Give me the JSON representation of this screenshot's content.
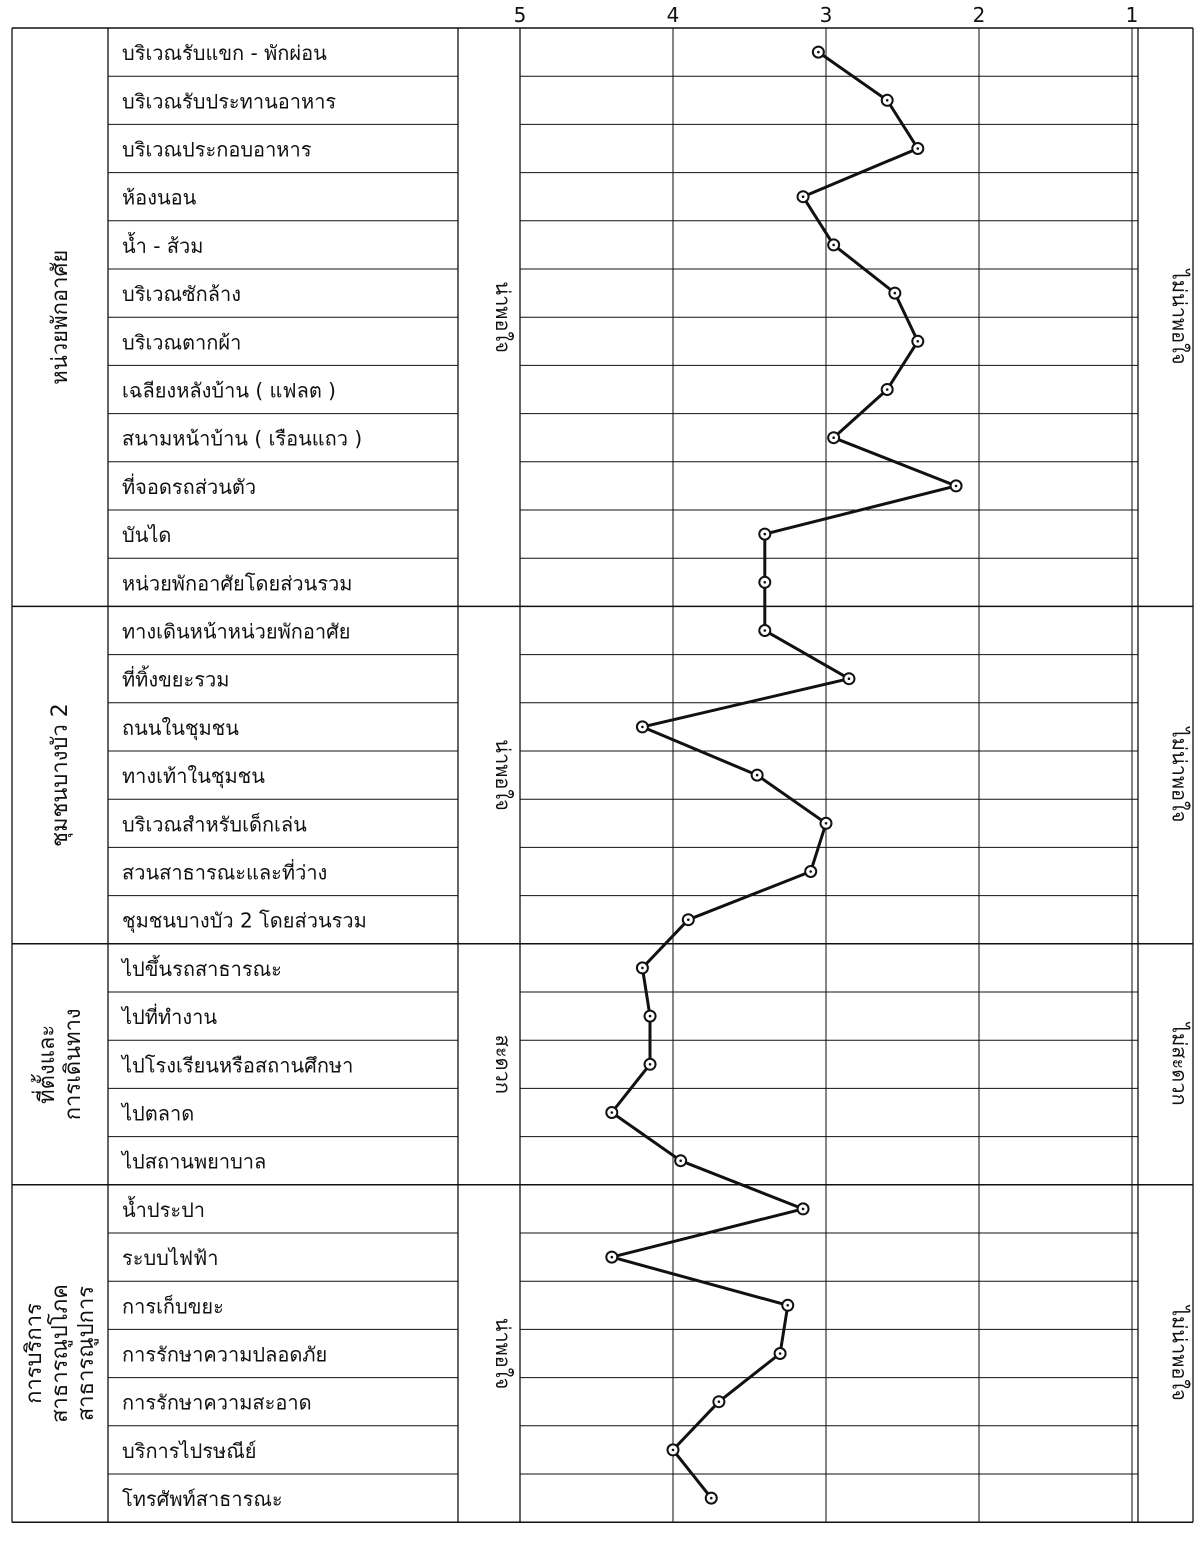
{
  "chart_data": {
    "type": "line",
    "orientation": "horizontal-value-axis",
    "x_ticks": [
      5,
      4,
      3,
      2,
      1
    ],
    "xlim": [
      5,
      1
    ],
    "grid": true,
    "marker": "open-circle",
    "groups": [
      {
        "label": "หน่วยพักอาศัย",
        "positive": "น่าพอใจ",
        "negative": "ไม่น่าพอใจ",
        "items": [
          {
            "label": "บริเวณรับแขก - พักผ่อน",
            "value": 3.05
          },
          {
            "label": "บริเวณรับประทานอาหาร",
            "value": 2.6
          },
          {
            "label": "บริเวณประกอบอาหาร",
            "value": 2.4
          },
          {
            "label": "ห้องนอน",
            "value": 3.15
          },
          {
            "label": "น้ำ - ส้วม",
            "value": 2.95
          },
          {
            "label": "บริเวณซักล้าง",
            "value": 2.55
          },
          {
            "label": "บริเวณตากผ้า",
            "value": 2.4
          },
          {
            "label": "เฉลียงหลังบ้าน ( แฟลต )",
            "value": 2.6
          },
          {
            "label": "สนามหน้าบ้าน ( เรือนแถว )",
            "value": 2.95
          },
          {
            "label": "ที่จอดรถส่วนตัว",
            "value": 2.15
          },
          {
            "label": "บันได",
            "value": 3.4
          },
          {
            "label": "หน่วยพักอาศัยโดยส่วนรวม",
            "value": 3.4
          }
        ]
      },
      {
        "label": "ชุมชนบางบัว 2",
        "positive": "น่าพอใจ",
        "negative": "ไม่น่าพอใจ",
        "items": [
          {
            "label": "ทางเดินหน้าหน่วยพักอาศัย",
            "value": 3.4
          },
          {
            "label": "ที่ทิ้งขยะรวม",
            "value": 2.85
          },
          {
            "label": "ถนนในชุมชน",
            "value": 4.2
          },
          {
            "label": "ทางเท้าในชุมชน",
            "value": 3.45
          },
          {
            "label": "บริเวณสำหรับเด็กเล่น",
            "value": 3.0
          },
          {
            "label": "สวนสาธารณะและที่ว่าง",
            "value": 3.1
          },
          {
            "label": "ชุมชนบางบัว 2 โดยส่วนรวม",
            "value": 3.9
          }
        ]
      },
      {
        "label": "ที่ตั้งและการเดินทาง",
        "label_lines": [
          "ที่ตั้งและ",
          "การเดินทาง"
        ],
        "positive": "สะดวก",
        "negative": "ไม่สะดวก",
        "items": [
          {
            "label": "ไปขึ้นรถสาธารณะ",
            "value": 4.2
          },
          {
            "label": "ไปที่ทำงาน",
            "value": 4.15
          },
          {
            "label": "ไปโรงเรียนหรือสถานศึกษา",
            "value": 4.15
          },
          {
            "label": "ไปตลาด",
            "value": 4.4
          },
          {
            "label": "ไปสถานพยาบาล",
            "value": 3.95
          }
        ]
      },
      {
        "label": "การบริการสาธารณูปโภค สาธารณูปการ",
        "label_lines": [
          "การบริการ",
          "สาธารณูปโภค",
          "สาธารณูปการ"
        ],
        "positive": "น่าพอใจ",
        "negative": "ไม่น่าพอใจ",
        "items": [
          {
            "label": "น้ำประปา",
            "value": 3.15
          },
          {
            "label": "ระบบไฟฟ้า",
            "value": 4.4
          },
          {
            "label": "การเก็บขยะ",
            "value": 3.25
          },
          {
            "label": "การรักษาความปลอดภัย",
            "value": 3.3
          },
          {
            "label": "การรักษาความสะอาด",
            "value": 3.7
          },
          {
            "label": "บริการไปรษณีย์",
            "value": 4.0
          },
          {
            "label": "โทรศัพท์สาธารณะ",
            "value": 3.75
          }
        ]
      }
    ]
  }
}
